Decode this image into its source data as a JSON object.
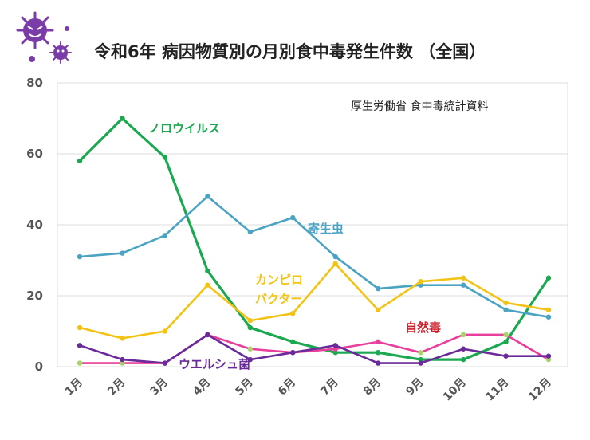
{
  "chart_data": {
    "type": "line",
    "title": "令和6年 病因物質別の月別食中毒発生件数 （全国）",
    "source": "厚生労働省 食中毒統計資料",
    "categories": [
      "1月",
      "2月",
      "3月",
      "4月",
      "5月",
      "6月",
      "7月",
      "8月",
      "9月",
      "10月",
      "11月",
      "12月"
    ],
    "ylim": [
      0,
      80
    ],
    "yticks": [
      "0",
      "20",
      "40",
      "60",
      "80"
    ],
    "grid": true,
    "series": [
      {
        "name": "ノロウイルス",
        "color": "#1aa850",
        "values": [
          58,
          70,
          59,
          27,
          11,
          7,
          4,
          4,
          2,
          2,
          7,
          25
        ]
      },
      {
        "name": "寄生虫",
        "color": "#4ba3c3",
        "values": [
          31,
          32,
          37,
          48,
          38,
          42,
          31,
          22,
          23,
          23,
          16,
          14
        ]
      },
      {
        "name": "カンピロバクター",
        "name_lines": [
          "カンピロ",
          "バクター"
        ],
        "color": "#f2c313",
        "values": [
          11,
          8,
          10,
          23,
          13,
          15,
          29,
          16,
          24,
          25,
          18,
          16
        ]
      },
      {
        "name": "自然毒",
        "color": "#c8202a",
        "line_color": "#e83e9c",
        "values": [
          1,
          1,
          1,
          9,
          5,
          4,
          5,
          7,
          4,
          9,
          9,
          2
        ]
      },
      {
        "name": "ウエルシュ菌",
        "color": "#6a2a9a",
        "values": [
          6,
          2,
          1,
          9,
          2,
          4,
          6,
          1,
          1,
          5,
          3,
          3
        ]
      }
    ],
    "icon": "virus-mascot-icon"
  }
}
